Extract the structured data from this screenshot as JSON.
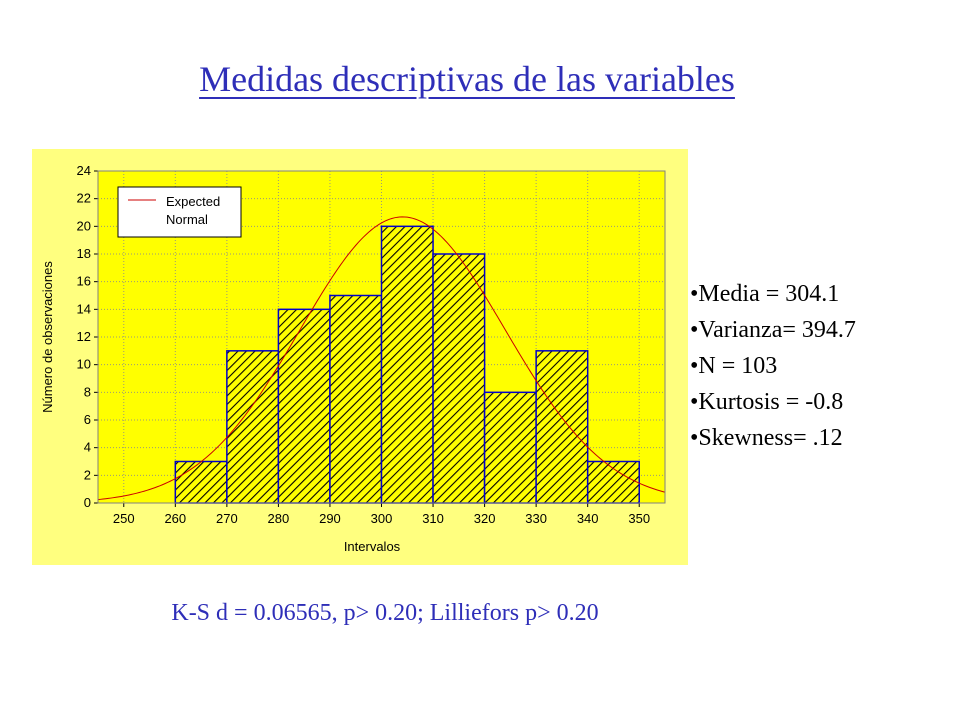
{
  "slide": {
    "title": "Medidas descriptivas de las variables",
    "stats": [
      "Media = 304.1",
      "Varianza= 394.7",
      "N = 103",
      "Kurtosis = -0.8",
      "Skewness= .12"
    ],
    "footer": "K-S  d = 0.06565, p> 0.20; Lilliefors p> 0.20"
  },
  "colors": {
    "title": "#2e2eb8",
    "panel_bg": "#ffff7f",
    "plot_bg": "#ffff00",
    "bar_fill": "#ffff00",
    "bar_hatch": "#000000",
    "bar_edge": "#0000cc",
    "curve": "#cc0000"
  },
  "chart_data": {
    "type": "bar",
    "xlabel": "Intervalos",
    "ylabel": "Número de observaciones",
    "xlim": [
      245,
      355
    ],
    "ylim": [
      0,
      24
    ],
    "x_ticks": [
      250,
      260,
      270,
      280,
      290,
      300,
      310,
      320,
      330,
      340,
      350
    ],
    "y_ticks": [
      0,
      2,
      4,
      6,
      8,
      10,
      12,
      14,
      16,
      18,
      20,
      22,
      24
    ],
    "bins": [
      {
        "from": 260,
        "to": 270,
        "count": 3
      },
      {
        "from": 270,
        "to": 280,
        "count": 11
      },
      {
        "from": 280,
        "to": 290,
        "count": 14
      },
      {
        "from": 290,
        "to": 300,
        "count": 15
      },
      {
        "from": 300,
        "to": 310,
        "count": 20
      },
      {
        "from": 310,
        "to": 320,
        "count": 18
      },
      {
        "from": 320,
        "to": 330,
        "count": 8
      },
      {
        "from": 330,
        "to": 340,
        "count": 11
      },
      {
        "from": 340,
        "to": 350,
        "count": 3
      }
    ],
    "expected_normal": {
      "mean": 304.1,
      "variance": 394.7,
      "n": 103,
      "bin_width": 10
    },
    "legend": {
      "entries": [
        "Expected",
        "Normal"
      ],
      "position": "top-left"
    },
    "grid": true
  }
}
